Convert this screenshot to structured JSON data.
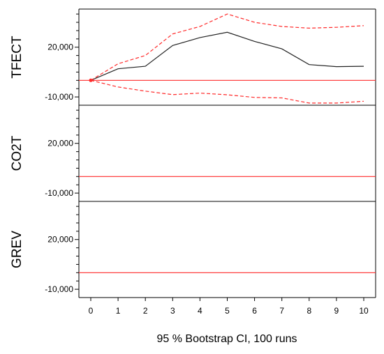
{
  "chart_data": {
    "type": "line",
    "xlabel": "95 % Bootstrap CI,  100 runs",
    "x": [
      0,
      1,
      2,
      3,
      4,
      5,
      6,
      7,
      8,
      9,
      10
    ],
    "ylim": [
      -15000,
      43000
    ],
    "yticks": [
      {
        "value": 20000,
        "label": "20,000"
      },
      {
        "value": -10000,
        "label": "-10,000"
      }
    ],
    "reference_line": 0,
    "panels": [
      {
        "label": "TFECT",
        "series": [
          {
            "role": "response",
            "values": [
              0,
              7000,
              8500,
              21000,
              25800,
              29000,
              23500,
              19000,
              9500,
              8300,
              8500
            ]
          },
          {
            "role": "upper_ci",
            "values": [
              0,
              10000,
              15000,
              28000,
              32500,
              40000,
              35000,
              32500,
              31500,
              32000,
              33000
            ]
          },
          {
            "role": "lower_ci",
            "values": [
              0,
              -4000,
              -6500,
              -8600,
              -7700,
              -8700,
              -10300,
              -10600,
              -13700,
              -13700,
              -12600
            ]
          }
        ]
      },
      {
        "label": "CO2T",
        "series": []
      },
      {
        "label": "GREV",
        "series": []
      }
    ]
  }
}
